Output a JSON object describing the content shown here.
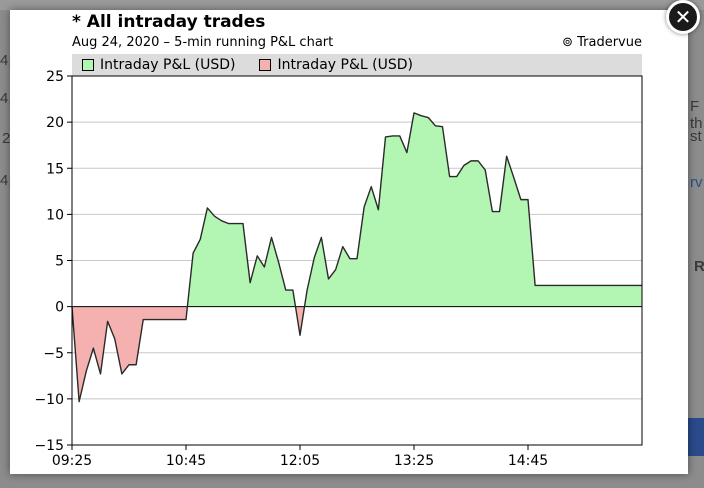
{
  "modal": {
    "title": "* All intraday trades",
    "subtitle": "Aug 24, 2020 – 5-min running P&L chart",
    "credit": "⊚ Tradervue"
  },
  "background": {
    "left_fragments": [
      "4,",
      "4,",
      "2",
      "4,"
    ],
    "right_fragments": [
      "F th",
      "st",
      "rv",
      "R"
    ]
  },
  "icons": {
    "close": "close-icon"
  },
  "colors": {
    "positive": "#b3f5b3",
    "negative": "#f5b0b0",
    "line": "#2a2a2a",
    "zero": "#000000"
  },
  "chart_data": {
    "type": "area",
    "title": "* All intraday trades",
    "subtitle": "Aug 24, 2020 – 5-min running P&L chart",
    "legend": [
      {
        "name": "Intraday P&L (USD)",
        "color": "#b3f5b3"
      },
      {
        "name": "Intraday P&L (USD)",
        "color": "#f5b0b0"
      }
    ],
    "legend_position": "top",
    "grid": true,
    "xlim": [
      "09:25",
      "16:05"
    ],
    "ylim": [
      -15,
      25
    ],
    "yticks": [
      -15,
      -10,
      -5,
      0,
      5,
      10,
      15,
      20,
      25
    ],
    "xticks": [
      "09:25",
      "10:45",
      "12:05",
      "13:25",
      "14:45"
    ],
    "series": [
      {
        "name": "Intraday P&L (USD)",
        "x": [
          "09:25",
          "09:30",
          "09:35",
          "09:40",
          "09:45",
          "09:50",
          "09:55",
          "10:00",
          "10:05",
          "10:10",
          "10:15",
          "10:20",
          "10:25",
          "10:30",
          "10:35",
          "10:40",
          "10:45",
          "10:50",
          "10:55",
          "11:00",
          "11:05",
          "11:10",
          "11:15",
          "11:20",
          "11:25",
          "11:30",
          "11:35",
          "11:40",
          "11:45",
          "11:50",
          "11:55",
          "12:00",
          "12:05",
          "12:10",
          "12:15",
          "12:20",
          "12:25",
          "12:30",
          "12:35",
          "12:40",
          "12:45",
          "12:50",
          "12:55",
          "13:00",
          "13:05",
          "13:10",
          "13:15",
          "13:20",
          "13:25",
          "13:30",
          "13:35",
          "13:40",
          "13:45",
          "13:50",
          "13:55",
          "14:00",
          "14:05",
          "14:10",
          "14:15",
          "14:20",
          "14:25",
          "14:30",
          "14:35",
          "14:40",
          "14:45",
          "14:50",
          "14:55",
          "15:00",
          "15:05",
          "15:10",
          "15:15",
          "15:20",
          "15:25",
          "15:30",
          "15:35",
          "15:40",
          "15:45",
          "15:50",
          "15:55",
          "16:00",
          "16:05"
        ],
        "y": [
          0,
          -10.3,
          -7,
          -4.5,
          -7.3,
          -1.6,
          -3.5,
          -7.3,
          -6.3,
          -6.3,
          -1.4,
          -1.4,
          -1.4,
          -1.4,
          -1.4,
          -1.4,
          -1.4,
          5.8,
          7.3,
          10.7,
          9.8,
          9.3,
          9,
          9,
          9,
          2.6,
          5.5,
          4.3,
          7.5,
          4.8,
          1.8,
          1.8,
          -3.1,
          1.8,
          5.3,
          7.5,
          3,
          4,
          6.5,
          5.2,
          5.2,
          10.8,
          13,
          10.5,
          18.4,
          18.5,
          18.5,
          16.7,
          21,
          20.7,
          20.5,
          19.6,
          19.5,
          14.1,
          14.1,
          15.3,
          15.8,
          15.8,
          14.8,
          10.3,
          10.3,
          16.3,
          14,
          11.6,
          11.6,
          2.3,
          2.3,
          2.3,
          2.3,
          2.3,
          2.3,
          2.3,
          2.3,
          2.3,
          2.3,
          2.3,
          2.3,
          2.3,
          2.3,
          2.3,
          2.3
        ]
      }
    ]
  }
}
